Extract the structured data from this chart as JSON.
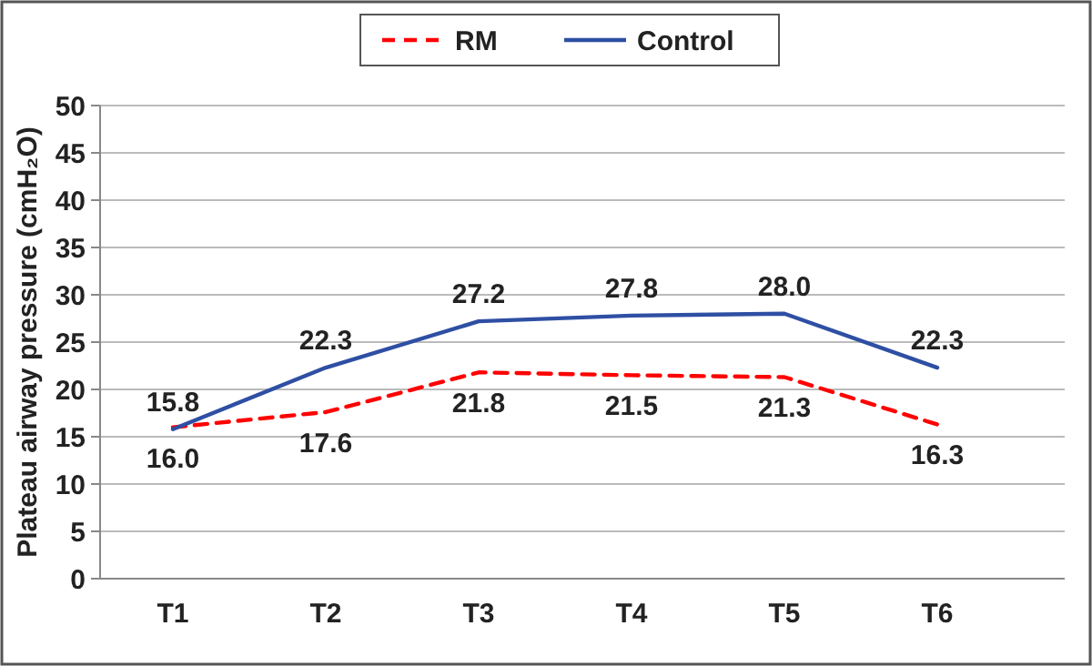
{
  "chart_data": {
    "type": "line",
    "ylabel": "Plateau airway pressure (cmH₂O)",
    "categories": [
      "T1",
      "T2",
      "T3",
      "T4",
      "T5",
      "T6"
    ],
    "series": [
      {
        "name": "RM",
        "color": "#ff0000",
        "line_style": "dashed",
        "values": [
          16.0,
          17.6,
          21.8,
          21.5,
          21.3,
          16.3
        ],
        "value_labels": [
          "16.0",
          "17.6",
          "21.8",
          "21.5",
          "21.3",
          "16.3"
        ]
      },
      {
        "name": "Control",
        "color": "#2e4fa3",
        "line_style": "solid",
        "values": [
          15.8,
          22.3,
          27.2,
          27.8,
          28.0,
          22.3
        ],
        "value_labels": [
          "15.8",
          "22.3",
          "27.2",
          "27.8",
          "28.0",
          "22.3"
        ]
      }
    ],
    "ylim": [
      0,
      50
    ],
    "yticks": [
      0,
      5,
      10,
      15,
      20,
      25,
      30,
      35,
      40,
      45,
      50
    ],
    "grid": "y",
    "legend": "top",
    "marker": "none"
  }
}
